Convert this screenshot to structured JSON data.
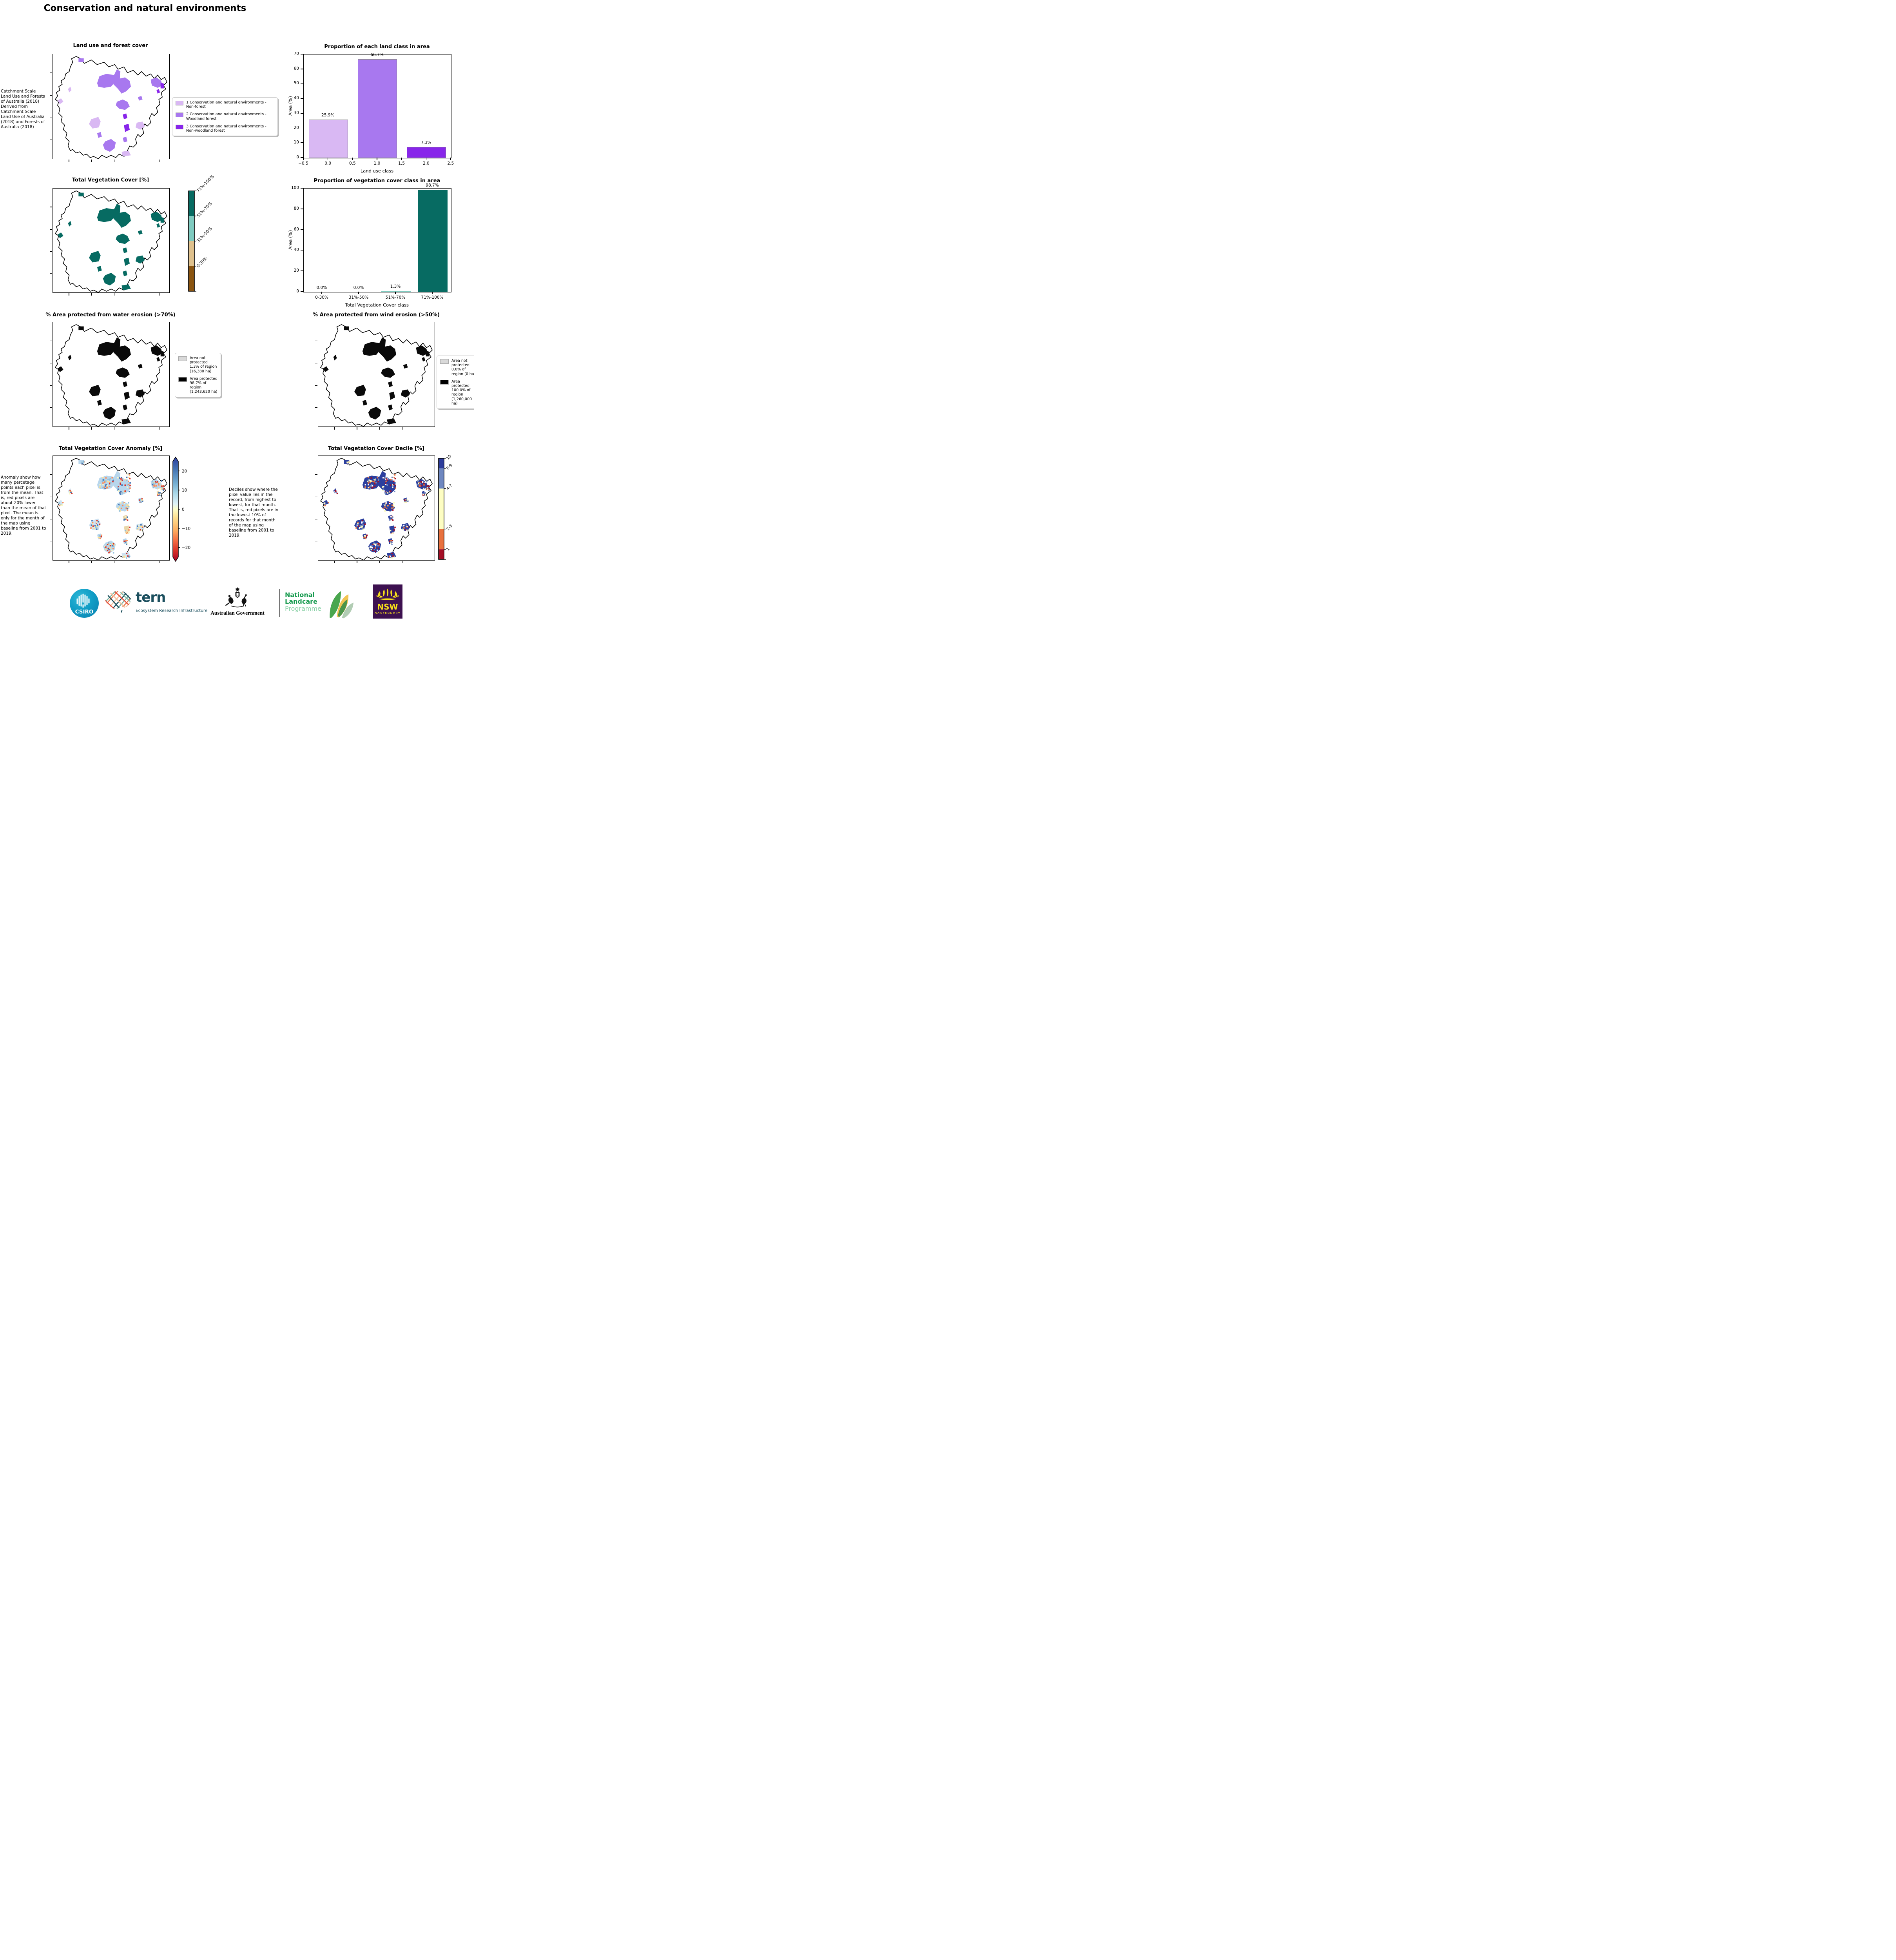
{
  "page_title": "Conservation and natural environments",
  "panels": {
    "land_use": {
      "title": "Land use and forest cover",
      "side_note": " Catchment Scale Land Use and Forests of Australia (2018) Derived from Catchment Scale Land Use of Australia (2018) and Forests of Australia (2018)",
      "legend": [
        {
          "label": "1 Conservation and natural environments - Non-forest",
          "color": "#d9b8f3"
        },
        {
          "label": "2 Conservation and natural environments - Woodland forest",
          "color": "#a878ef"
        },
        {
          "label": "3 Conservation and natural environments - Non-woodland forest",
          "color": "#8826ea"
        }
      ]
    },
    "veg_cover": {
      "title": "Total Vegetation Cover [%]",
      "colorbar": [
        {
          "label": "71%-100%",
          "color": "#076b62"
        },
        {
          "label": "51%-70%",
          "color": "#7fcbc0"
        },
        {
          "label": "31%-50%",
          "color": "#dfc18d"
        },
        {
          "label": "0-30%",
          "color": "#8a5410"
        }
      ]
    },
    "water_erosion": {
      "title": "% Area protected from water erosion (>70%)",
      "legend": [
        {
          "label": "Area not protected 1.3% of region (16,380 ha)",
          "color": "#d9d9d9"
        },
        {
          "label": "Area protected 98.7% of region (1,243,620 ha)",
          "color": "#000000"
        }
      ]
    },
    "wind_erosion": {
      "title": "% Area protected from wind erosion (>50%)",
      "legend": [
        {
          "label": "Area not protected 0.0% of region (0 ha)",
          "color": "#d9d9d9"
        },
        {
          "label": "Area protected 100.0% of region (1,260,000 ha)",
          "color": "#000000"
        }
      ]
    },
    "anomaly": {
      "title": "Total Vegetation Cover Anomaly [%]",
      "note": "Anomaly show how many percetage points each pixel is from the mean. That is, red pixels are about 20% lower than the mean of that pixel. The mean is only for the month of the map using baseline from 2001 to 2019.",
      "colorbar_ticks": [
        "20",
        "10",
        "0",
        "−10",
        "−20"
      ]
    },
    "decile": {
      "title": "Total Vegetation Cover Decile [%]",
      "note": "Deciles show where the pixel value lies in the record, from highest to lowest, for that month. That is, red pixels are in the lowest 10% of records for that month of the map using baseline from 2001 to 2019.",
      "colorbar": [
        {
          "label": "10",
          "color": "#2d3c9b",
          "span": 0.1
        },
        {
          "label": "8-9",
          "color": "#6e87c0",
          "span": 0.2
        },
        {
          "label": "4-7",
          "color": "#fdfdc2",
          "span": 0.4
        },
        {
          "label": "2-3",
          "color": "#e8713e",
          "span": 0.2
        },
        {
          "label": "1",
          "color": "#a50f26",
          "span": 0.1
        }
      ]
    }
  },
  "chart_data": [
    {
      "type": "bar",
      "title": "Proportion of each land class in area",
      "x": [
        0,
        1,
        2
      ],
      "values": [
        25.9,
        66.7,
        7.3
      ],
      "bar_labels": [
        "25.9%",
        "66.7%",
        "7.3%"
      ],
      "colors": [
        "#d9b8f3",
        "#a878ef",
        "#8826ea"
      ],
      "bar_edge": "#8a8a8a",
      "xlabel": "Land use class",
      "ylabel": "Area (%)",
      "xlim": [
        -0.5,
        2.5
      ],
      "ylim": [
        0,
        70
      ],
      "xtick_values": [
        -0.5,
        0,
        0.5,
        1,
        1.5,
        2,
        2.5
      ],
      "xtick_labels": [
        "−0.5",
        "0.0",
        "0.5",
        "1.0",
        "1.5",
        "2.0",
        "2.5"
      ],
      "yticks": [
        0,
        10,
        20,
        30,
        40,
        50,
        60,
        70
      ],
      "grid": false,
      "legend_position": "none"
    },
    {
      "type": "bar",
      "title": "Proportion of vegetation cover class in area",
      "categories": [
        "0-30%",
        "31%-50%",
        "51%-70%",
        "71%-100%"
      ],
      "values": [
        0.0,
        0.0,
        1.3,
        98.7
      ],
      "bar_labels": [
        "0.0%",
        "0.0%",
        "1.3%",
        "98.7%"
      ],
      "colors": [
        "#8a5410",
        "#dfc18d",
        "#7fcbc0",
        "#076b62"
      ],
      "xlabel": "Total Vegetation Cover class",
      "ylabel": "Area (%)",
      "ylim": [
        0,
        100
      ],
      "yticks": [
        0,
        20,
        40,
        60,
        80,
        100
      ],
      "grid": false,
      "legend_position": "none"
    }
  ],
  "footer": {
    "csiro": "CSIRO",
    "tern": "tern",
    "tern_tagline": "Ecosystem Research Infrastructure",
    "aus_gov": "Australian Government",
    "landcare_line1": "National",
    "landcare_line2": "Landcare",
    "landcare_line3": "Programme",
    "nsw": "NSW",
    "nsw_sub": "GOVERNMENT"
  },
  "colors": {
    "protected": "#000000",
    "not_protected": "#d9d9d9",
    "landcare_green": "#169a4e",
    "landcare_light_green": "#86cfa4",
    "tern_teal": "#1b4f5e",
    "nsw_purple": "#3d1150",
    "nsw_yellow": "#f7e01a"
  }
}
